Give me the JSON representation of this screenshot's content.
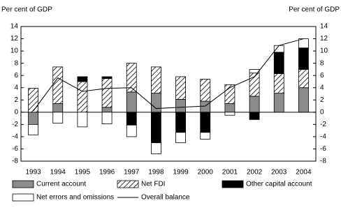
{
  "chart_data": {
    "type": "bar",
    "stacked": true,
    "y_label": "Per cent of GDP",
    "y2_label": "Per cent of GDP",
    "categories": [
      "1993",
      "1994",
      "1995",
      "1996",
      "1997",
      "1998",
      "1999",
      "2000",
      "2001",
      "2002",
      "2003",
      "2004"
    ],
    "series": [
      {
        "name": "Current account",
        "type": "bar",
        "color": "#8c8c8c",
        "values": [
          -2,
          1.4,
          0,
          0.8,
          3.3,
          3.1,
          2.1,
          1.8,
          1.4,
          2.6,
          3.1,
          4
        ]
      },
      {
        "name": "Net FDI",
        "type": "bar",
        "color": "hatch",
        "values": [
          3.9,
          6,
          5,
          4.7,
          4.7,
          4.3,
          3.7,
          3.6,
          3.1,
          3.8,
          3.2,
          3
        ]
      },
      {
        "name": "Other capital account",
        "type": "bar",
        "color": "#000000",
        "values": [
          0,
          0,
          0.8,
          0.3,
          -2.1,
          -5,
          -3.3,
          -3.3,
          0,
          -1.2,
          3.5,
          3.5
        ]
      },
      {
        "name": "Net errors and omissions",
        "type": "bar",
        "color": "#ffffff",
        "values": [
          -1.7,
          -1.8,
          -2.4,
          -1.9,
          -1.9,
          -1.8,
          -1.7,
          -1.1,
          -0.5,
          0.6,
          1.1,
          1.5
        ]
      },
      {
        "name": "Overall balance",
        "type": "line",
        "color": "#000000",
        "values": [
          0.2,
          5.6,
          3.4,
          3.9,
          4,
          0.6,
          0.8,
          1,
          4,
          5.8,
          10.9,
          12
        ]
      }
    ],
    "ylim": [
      -8,
      14
    ],
    "yticks": [
      -8,
      -6,
      -4,
      -2,
      0,
      2,
      4,
      6,
      8,
      10,
      12,
      14
    ],
    "y2lim": [
      -8,
      14
    ],
    "y2ticks": [
      -8,
      -6,
      -4,
      -2,
      0,
      2,
      4,
      6,
      8,
      10,
      12,
      14
    ]
  }
}
